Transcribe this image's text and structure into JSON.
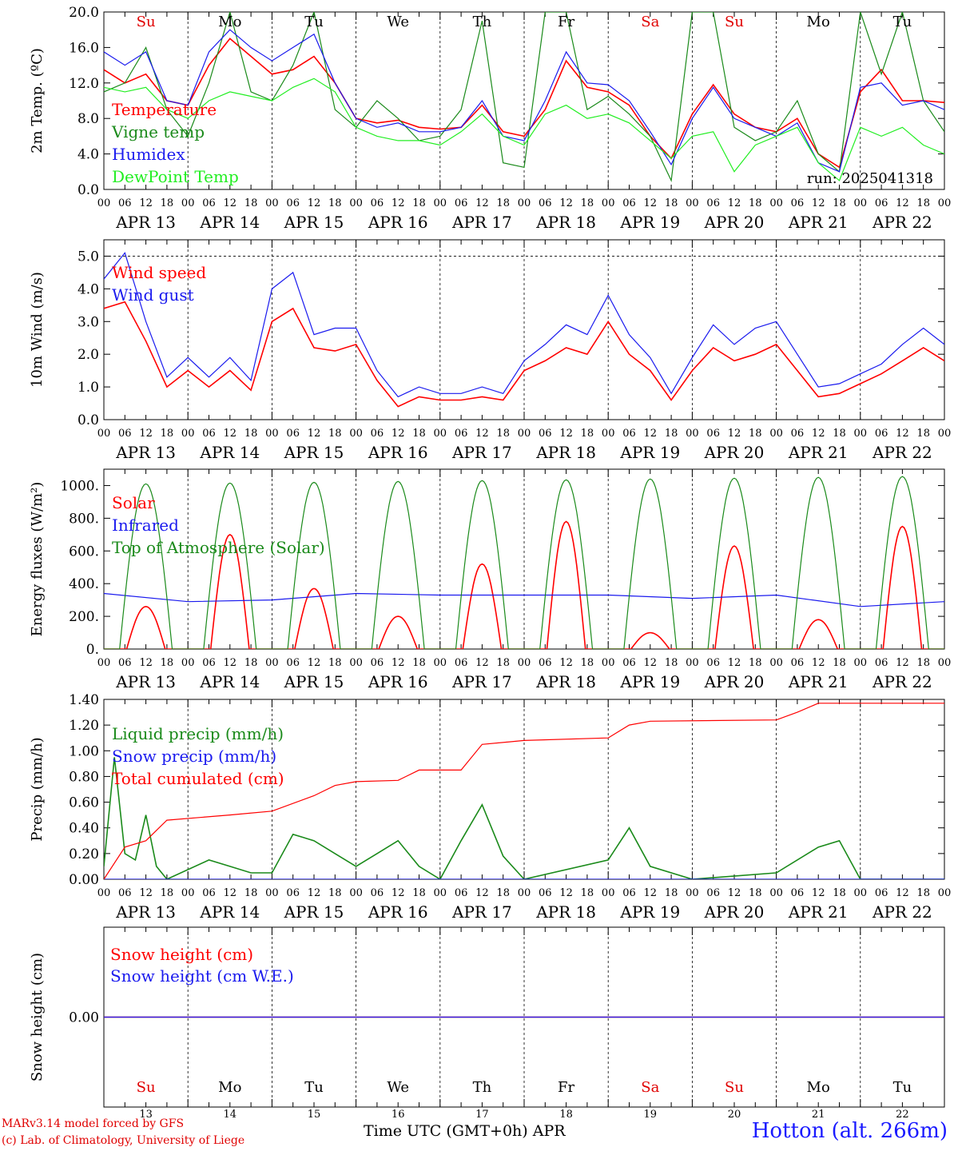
{
  "run_label": "run: 2025041318",
  "station": "Hotton (alt. 266m)",
  "footer": {
    "model": "MARv3.14 model forced by GFS",
    "credit": "(c) Lab. of Climatology, University of Liege",
    "time_axis": "Time UTC (GMT+0h) APR"
  },
  "hour_ticks": [
    "00",
    "06",
    "12",
    "18"
  ],
  "dates": [
    "APR 13",
    "APR 14",
    "APR 15",
    "APR 16",
    "APR 17",
    "APR 18",
    "APR 19",
    "APR 20",
    "APR 21",
    "APR 22"
  ],
  "date_numbers": [
    "13",
    "14",
    "15",
    "16",
    "17",
    "18",
    "19",
    "20",
    "21",
    "22"
  ],
  "weekdays": [
    "Su",
    "Mo",
    "Tu",
    "We",
    "Th",
    "Fr",
    "Sa",
    "Su",
    "Mo",
    "Tu"
  ],
  "weekday_colors": [
    "#e00000",
    "#000000",
    "#000000",
    "#000000",
    "#000000",
    "#000000",
    "#e00000",
    "#e00000",
    "#000000",
    "#000000"
  ],
  "colors": {
    "red": "#ff0000",
    "darkgreen": "#1a8a1a",
    "blue": "#1a1aee",
    "lightgreen": "#22ee22"
  },
  "chart_data": [
    {
      "type": "line",
      "ylabel": "2m Temp. (ºC)",
      "ylim": [
        0,
        20
      ],
      "yticks": [
        "0.0",
        "4.0",
        "8.0",
        "12.0",
        "16.0",
        "20.0"
      ],
      "x_unit": "hours since APR 13 00 UTC",
      "series": [
        {
          "name": "Temperature",
          "color": "#ff0000",
          "x": [
            0,
            6,
            12,
            18,
            24,
            30,
            36,
            42,
            48,
            54,
            60,
            66,
            72,
            78,
            84,
            90,
            96,
            102,
            108,
            114,
            120,
            126,
            132,
            138,
            144,
            150,
            156,
            162,
            168,
            174,
            180,
            186,
            192,
            198,
            204,
            210,
            216,
            222,
            228,
            234,
            240
          ],
          "y": [
            13.5,
            12,
            13,
            10,
            9.5,
            14,
            17,
            15,
            13,
            13.5,
            15,
            12,
            8,
            7.5,
            7.8,
            7,
            6.8,
            7,
            9.5,
            6.5,
            6,
            9,
            14.5,
            11.5,
            11,
            9.5,
            6,
            3.5,
            8.5,
            11.8,
            8.5,
            7,
            6.5,
            8,
            4,
            2.5,
            11,
            13.5,
            10,
            10,
            9.8
          ]
        },
        {
          "name": "Vigne temp",
          "color": "#1a8a1a",
          "x": [
            0,
            6,
            12,
            18,
            24,
            30,
            36,
            42,
            48,
            54,
            60,
            66,
            72,
            78,
            84,
            90,
            96,
            102,
            108,
            114,
            120,
            126,
            132,
            138,
            144,
            150,
            156,
            162,
            168,
            174,
            180,
            186,
            192,
            198,
            204,
            210,
            216,
            222,
            228,
            234,
            240
          ],
          "y": [
            11,
            12,
            16,
            9,
            6,
            12,
            20,
            11,
            10,
            14,
            20,
            9,
            7,
            10,
            8,
            5.5,
            6,
            9,
            19,
            3,
            2.5,
            20,
            20,
            9,
            10.5,
            8.5,
            6,
            1,
            20,
            20,
            7,
            5.5,
            6.5,
            10,
            4,
            2,
            20,
            13,
            20,
            10,
            6.5
          ]
        },
        {
          "name": "Humidex",
          "color": "#1a1aee",
          "x": [
            0,
            6,
            12,
            18,
            24,
            30,
            36,
            42,
            48,
            54,
            60,
            66,
            72,
            78,
            84,
            90,
            96,
            102,
            108,
            114,
            120,
            126,
            132,
            138,
            144,
            150,
            156,
            162,
            168,
            174,
            180,
            186,
            192,
            198,
            204,
            210,
            216,
            222,
            228,
            234,
            240
          ],
          "y": [
            15.5,
            14,
            15.5,
            10,
            9.5,
            15.5,
            18,
            16,
            14.5,
            16,
            17.5,
            12,
            8,
            7,
            7.5,
            6.5,
            6.5,
            7,
            10,
            6,
            5.5,
            10,
            15.5,
            12,
            11.8,
            10,
            6.5,
            2.8,
            8,
            11.5,
            8,
            7,
            6,
            7.5,
            3,
            2,
            11.5,
            12,
            9.5,
            10,
            9
          ]
        },
        {
          "name": "DewPoint Temp",
          "color": "#22ee22",
          "x": [
            0,
            6,
            12,
            18,
            24,
            30,
            36,
            42,
            48,
            54,
            60,
            66,
            72,
            78,
            84,
            90,
            96,
            102,
            108,
            114,
            120,
            126,
            132,
            138,
            144,
            150,
            156,
            162,
            168,
            174,
            180,
            186,
            192,
            198,
            204,
            210,
            216,
            222,
            228,
            234,
            240
          ],
          "y": [
            11.5,
            11,
            11.5,
            9,
            8,
            10,
            11,
            10.5,
            10,
            11.5,
            12.5,
            11,
            7,
            6,
            5.5,
            5.5,
            5,
            6.5,
            8.5,
            6,
            5,
            8.5,
            9.5,
            8,
            8.5,
            7.5,
            5.5,
            3.5,
            6,
            6.5,
            2,
            5,
            6,
            7,
            3,
            1,
            7,
            6,
            7,
            5,
            4
          ]
        }
      ]
    },
    {
      "type": "line",
      "ylabel": "10m Wind (m/s)",
      "ylim": [
        0,
        5.5
      ],
      "yticks": [
        "0.0",
        "1.0",
        "2.0",
        "3.0",
        "4.0",
        "5.0"
      ],
      "reference_line": 5.0,
      "series": [
        {
          "name": "Wind speed",
          "color": "#ff0000",
          "x": [
            0,
            6,
            12,
            18,
            24,
            30,
            36,
            42,
            48,
            54,
            60,
            66,
            72,
            78,
            84,
            90,
            96,
            102,
            108,
            114,
            120,
            126,
            132,
            138,
            144,
            150,
            156,
            162,
            168,
            174,
            180,
            186,
            192,
            198,
            204,
            210,
            216,
            222,
            228,
            234,
            240
          ],
          "y": [
            3.4,
            3.6,
            2.4,
            1.0,
            1.5,
            1.0,
            1.5,
            0.9,
            3.0,
            3.4,
            2.2,
            2.1,
            2.3,
            1.2,
            0.4,
            0.7,
            0.6,
            0.6,
            0.7,
            0.6,
            1.5,
            1.8,
            2.2,
            2.0,
            3.0,
            2.0,
            1.5,
            0.6,
            1.5,
            2.2,
            1.8,
            2.0,
            2.3,
            1.5,
            0.7,
            0.8,
            1.1,
            1.4,
            1.8,
            2.2,
            1.8
          ]
        },
        {
          "name": "Wind gust",
          "color": "#1a1aee",
          "x": [
            0,
            6,
            12,
            18,
            24,
            30,
            36,
            42,
            48,
            54,
            60,
            66,
            72,
            78,
            84,
            90,
            96,
            102,
            108,
            114,
            120,
            126,
            132,
            138,
            144,
            150,
            156,
            162,
            168,
            174,
            180,
            186,
            192,
            198,
            204,
            210,
            216,
            222,
            228,
            234,
            240
          ],
          "y": [
            4.3,
            5.1,
            3.0,
            1.3,
            1.9,
            1.3,
            1.9,
            1.2,
            4.0,
            4.5,
            2.6,
            2.8,
            2.8,
            1.5,
            0.7,
            1.0,
            0.8,
            0.8,
            1.0,
            0.8,
            1.8,
            2.3,
            2.9,
            2.6,
            3.8,
            2.6,
            1.9,
            0.8,
            1.9,
            2.9,
            2.3,
            2.8,
            3.0,
            2.0,
            1.0,
            1.1,
            1.4,
            1.7,
            2.3,
            2.8,
            2.3
          ]
        }
      ]
    },
    {
      "type": "line",
      "ylabel": "Energy fluxes (W/m²)",
      "ylim": [
        0,
        1100
      ],
      "yticks": [
        "0.",
        "200.",
        "400.",
        "600.",
        "800.",
        "1000."
      ],
      "series": [
        {
          "name": "Solar",
          "color": "#ff0000",
          "daily_peak": [
            260,
            700,
            370,
            200,
            520,
            780,
            100,
            630,
            180,
            750
          ]
        },
        {
          "name": "Infrared",
          "color": "#1a1aee",
          "x": [
            0,
            24,
            48,
            72,
            96,
            120,
            144,
            168,
            192,
            216,
            240
          ],
          "y": [
            340,
            290,
            300,
            340,
            330,
            330,
            330,
            310,
            330,
            260,
            290
          ]
        },
        {
          "name": "Top of Atmosphere (Solar)",
          "color": "#1a8a1a",
          "daily_peak": [
            1010,
            1015,
            1020,
            1025,
            1030,
            1035,
            1040,
            1045,
            1050,
            1055
          ]
        }
      ]
    },
    {
      "type": "line",
      "ylabel": "Precip (mm/h)",
      "ylim": [
        0,
        1.4
      ],
      "yticks": [
        "0.00",
        "0.20",
        "0.40",
        "0.60",
        "0.80",
        "1.00",
        "1.20",
        "1.40"
      ],
      "series": [
        {
          "name": "Liquid precip (mm/h)",
          "color": "#1a8a1a",
          "x": [
            0,
            3,
            6,
            9,
            12,
            15,
            18,
            30,
            36,
            42,
            48,
            54,
            60,
            66,
            72,
            78,
            84,
            90,
            96,
            102,
            108,
            114,
            120,
            144,
            150,
            156,
            168,
            192,
            204,
            210,
            216,
            240
          ],
          "y": [
            0.1,
            0.95,
            0.2,
            0.15,
            0.5,
            0.1,
            0,
            0.15,
            0.1,
            0.05,
            0.05,
            0.35,
            0.3,
            0.2,
            0.1,
            0.2,
            0.3,
            0.1,
            0,
            0.3,
            0.58,
            0.18,
            0,
            0.15,
            0.4,
            0.1,
            0,
            0.05,
            0.25,
            0.3,
            0,
            0
          ]
        },
        {
          "name": "Snow precip (mm/h)",
          "color": "#1a1aee",
          "x": [
            0,
            240
          ],
          "y": [
            0,
            0
          ]
        },
        {
          "name": "Total cumulated (cm)",
          "color": "#ff0000",
          "x": [
            0,
            6,
            12,
            18,
            36,
            48,
            60,
            66,
            72,
            84,
            90,
            102,
            108,
            120,
            144,
            150,
            156,
            192,
            198,
            204,
            240
          ],
          "y": [
            0,
            0.25,
            0.3,
            0.46,
            0.5,
            0.53,
            0.65,
            0.73,
            0.76,
            0.77,
            0.85,
            0.85,
            1.05,
            1.08,
            1.1,
            1.2,
            1.23,
            1.24,
            1.3,
            1.37,
            1.37
          ]
        }
      ]
    },
    {
      "type": "line",
      "ylabel": "Snow height (cm)",
      "yticks": [
        "0.00"
      ],
      "series": [
        {
          "name": "Snow height (cm)",
          "color": "#ff0000",
          "x": [
            0,
            240
          ],
          "y": [
            0,
            0
          ]
        },
        {
          "name": "Snow height (cm W.E.)",
          "color": "#1a1aee",
          "x": [
            0,
            240
          ],
          "y": [
            0,
            0
          ]
        }
      ]
    }
  ]
}
